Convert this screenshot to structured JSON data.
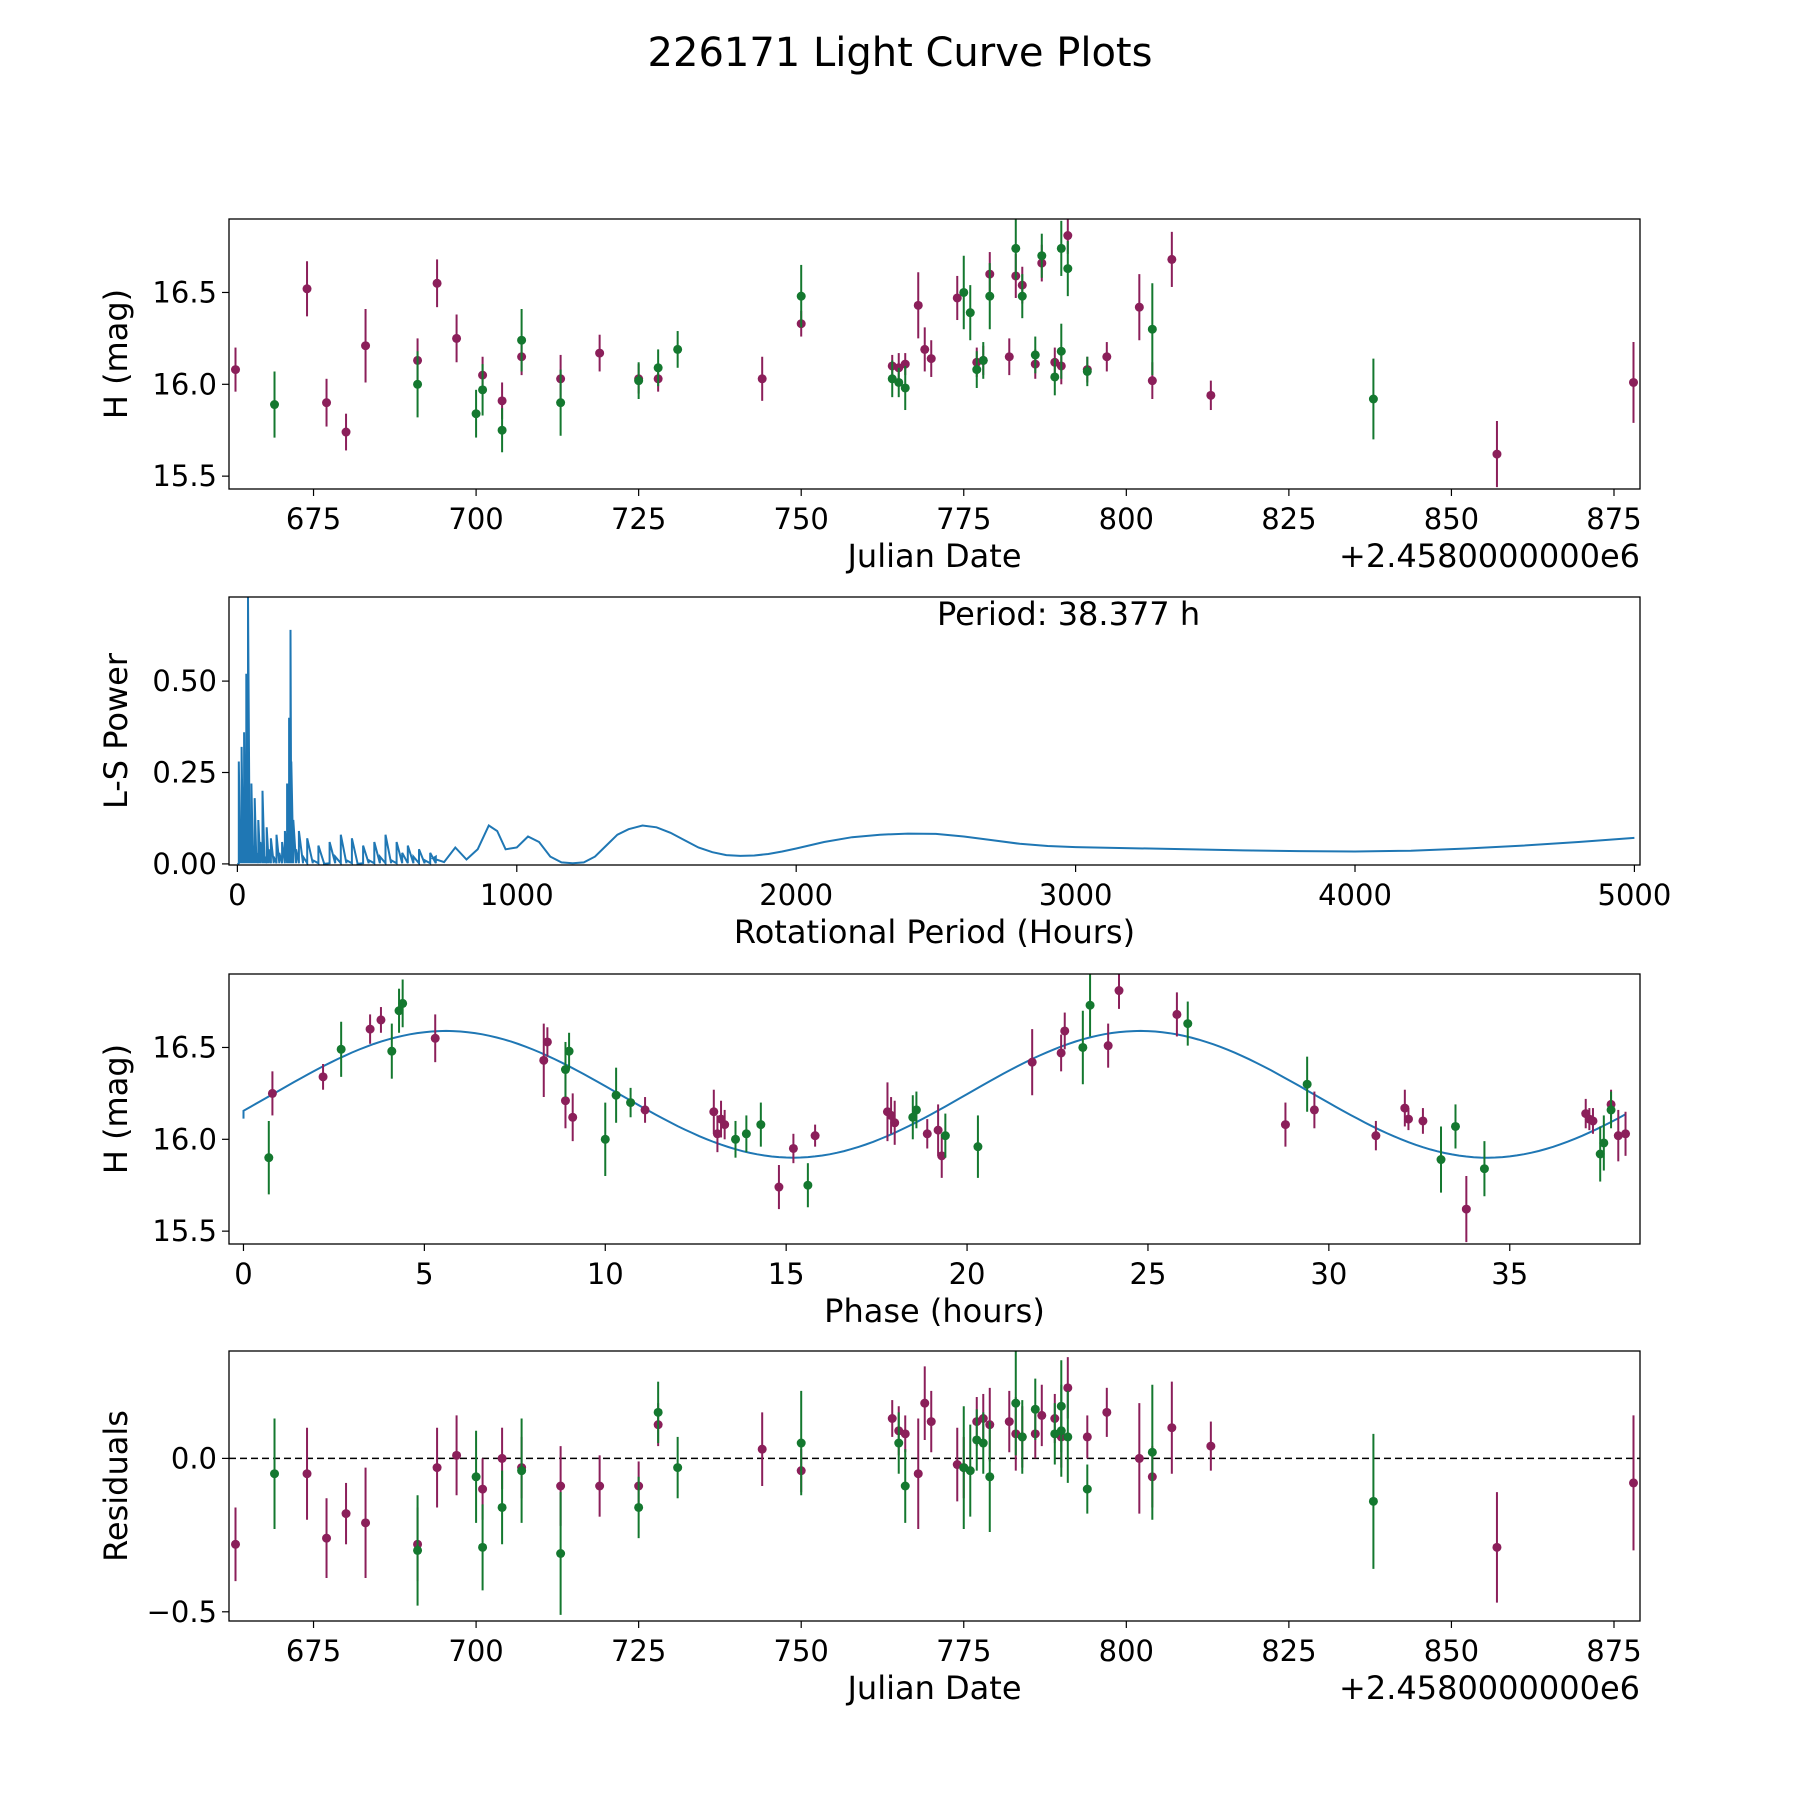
{
  "figure_title": "226171 Light Curve Plots",
  "colors": {
    "magenta": "#8B1F5A",
    "green": "#14782F",
    "line": "#1F77B4",
    "zero_line": "#000000"
  },
  "chart_data": [
    {
      "id": "lightcurve",
      "type": "scatter",
      "title": "",
      "xlabel": "Julian Date",
      "ylabel": "H (mag)",
      "offset_text": "+2.4580000000e6",
      "xlim": [
        662,
        879
      ],
      "ylim": [
        15.43,
        16.9
      ],
      "xticks": [
        675,
        700,
        725,
        750,
        775,
        800,
        825,
        850,
        875
      ],
      "yticks": [
        15.5,
        16.0,
        16.5
      ],
      "yticklabels": [
        "15.5",
        "16.0",
        "16.5"
      ],
      "series": [
        {
          "name": "magenta",
          "x": [
            663,
            674,
            677,
            680,
            683,
            691,
            694,
            697,
            701,
            704,
            707,
            713,
            719,
            725,
            728,
            744,
            750,
            764,
            765,
            766,
            768,
            769,
            770,
            774,
            777,
            778,
            779,
            782,
            783,
            784,
            786,
            787,
            789,
            790,
            791,
            794,
            797,
            802,
            804,
            807,
            813,
            857,
            878
          ],
          "y": [
            16.08,
            16.52,
            15.9,
            15.74,
            16.21,
            16.13,
            16.55,
            16.25,
            16.05,
            15.91,
            16.15,
            16.03,
            16.17,
            16.03,
            16.03,
            16.03,
            16.33,
            16.1,
            16.09,
            16.11,
            16.43,
            16.19,
            16.14,
            16.47,
            16.12,
            16.13,
            16.6,
            16.15,
            16.59,
            16.54,
            16.11,
            16.66,
            16.12,
            16.1,
            16.81,
            16.08,
            16.15,
            16.42,
            16.02,
            16.68,
            15.94,
            15.62,
            16.01
          ],
          "err": [
            0.12,
            0.15,
            0.13,
            0.1,
            0.2,
            0.12,
            0.13,
            0.13,
            0.1,
            0.1,
            0.1,
            0.13,
            0.1,
            0.08,
            0.07,
            0.12,
            0.07,
            0.06,
            0.08,
            0.06,
            0.18,
            0.12,
            0.1,
            0.12,
            0.08,
            0.08,
            0.12,
            0.1,
            0.12,
            0.1,
            0.08,
            0.1,
            0.08,
            0.1,
            0.1,
            0.07,
            0.08,
            0.18,
            0.1,
            0.15,
            0.08,
            0.18,
            0.22
          ]
        },
        {
          "name": "green",
          "x": [
            669,
            691,
            700,
            701,
            704,
            707,
            713,
            725,
            728,
            731,
            750,
            764,
            765,
            766,
            775,
            776,
            777,
            778,
            779,
            783,
            784,
            786,
            787,
            789,
            790,
            790,
            791,
            794,
            804,
            838
          ],
          "y": [
            15.89,
            16.0,
            15.84,
            15.97,
            15.75,
            16.24,
            15.9,
            16.02,
            16.09,
            16.19,
            16.48,
            16.03,
            16.01,
            15.98,
            16.5,
            16.39,
            16.08,
            16.13,
            16.48,
            16.74,
            16.48,
            16.16,
            16.7,
            16.04,
            16.18,
            16.74,
            16.63,
            16.07,
            16.3,
            15.92
          ],
          "err": [
            0.18,
            0.18,
            0.13,
            0.14,
            0.12,
            0.17,
            0.18,
            0.1,
            0.1,
            0.1,
            0.17,
            0.1,
            0.08,
            0.12,
            0.2,
            0.15,
            0.1,
            0.1,
            0.18,
            0.17,
            0.12,
            0.1,
            0.12,
            0.1,
            0.15,
            0.15,
            0.15,
            0.08,
            0.25,
            0.22
          ]
        }
      ]
    },
    {
      "id": "periodogram",
      "type": "line",
      "title": "",
      "xlabel": "Rotational Period (Hours)",
      "ylabel": "L-S Power",
      "annotation": "Period: 38.377 h",
      "xlim": [
        -30,
        5020
      ],
      "ylim": [
        -0.003,
        0.73
      ],
      "xticks": [
        0,
        1000,
        2000,
        3000,
        4000,
        5000
      ],
      "yticks": [
        0.0,
        0.25,
        0.5
      ],
      "yticklabels": [
        "0.00",
        "0.25",
        "0.50"
      ],
      "spikes": {
        "x": [
          5,
          10,
          15,
          20,
          24,
          28,
          32,
          38,
          44,
          50,
          56,
          62,
          68,
          75,
          82,
          90,
          97,
          105,
          112,
          120,
          130,
          140,
          150,
          160,
          170,
          178,
          185,
          190,
          193,
          200,
          210,
          220,
          235,
          250,
          270,
          290,
          310,
          330,
          350,
          370,
          390,
          410,
          430,
          450,
          470,
          490,
          510,
          530,
          550,
          570,
          590,
          610,
          630,
          650,
          670,
          690,
          710
        ],
        "y": [
          0.28,
          0.12,
          0.32,
          0.06,
          0.36,
          0.16,
          0.52,
          0.73,
          0.08,
          0.22,
          0.05,
          0.18,
          0.03,
          0.12,
          0.06,
          0.2,
          0.02,
          0.1,
          0.04,
          0.07,
          0.02,
          0.08,
          0.03,
          0.06,
          0.09,
          0.22,
          0.4,
          0.64,
          0.28,
          0.12,
          0.04,
          0.09,
          0.02,
          0.07,
          0.01,
          0.05,
          0.0,
          0.06,
          0.02,
          0.08,
          0.01,
          0.07,
          0.0,
          0.05,
          0.01,
          0.06,
          0.02,
          0.08,
          0.01,
          0.06,
          0.03,
          0.05,
          0.02,
          0.04,
          0.01,
          0.03,
          0.02
        ]
      },
      "curve": {
        "x": [
          700,
          740,
          780,
          820,
          860,
          900,
          930,
          960,
          1000,
          1040,
          1080,
          1120,
          1160,
          1200,
          1240,
          1280,
          1320,
          1360,
          1400,
          1450,
          1500,
          1550,
          1600,
          1650,
          1700,
          1750,
          1800,
          1850,
          1900,
          1950,
          2000,
          2100,
          2200,
          2300,
          2400,
          2500,
          2600,
          2700,
          2800,
          2900,
          3000,
          3200,
          3400,
          3600,
          3800,
          4000,
          4200,
          4400,
          4600,
          4800,
          5000
        ],
        "y": [
          0.015,
          0.005,
          0.045,
          0.012,
          0.04,
          0.105,
          0.09,
          0.04,
          0.045,
          0.075,
          0.06,
          0.02,
          0.004,
          0.002,
          0.004,
          0.02,
          0.05,
          0.08,
          0.095,
          0.105,
          0.1,
          0.085,
          0.065,
          0.045,
          0.032,
          0.024,
          0.022,
          0.023,
          0.027,
          0.034,
          0.042,
          0.06,
          0.073,
          0.08,
          0.083,
          0.082,
          0.075,
          0.065,
          0.055,
          0.049,
          0.046,
          0.043,
          0.04,
          0.037,
          0.035,
          0.034,
          0.036,
          0.042,
          0.05,
          0.06,
          0.071
        ]
      }
    },
    {
      "id": "phased",
      "type": "scatter",
      "title": "",
      "xlabel": "Phase (hours)",
      "ylabel": "H (mag)",
      "xlim": [
        -0.4,
        38.6
      ],
      "ylim": [
        15.43,
        16.9
      ],
      "xticks": [
        0,
        5,
        10,
        15,
        20,
        25,
        30,
        35
      ],
      "yticks": [
        15.5,
        16.0,
        16.5
      ],
      "yticklabels": [
        "15.5",
        "16.0",
        "16.5"
      ],
      "model": {
        "mean": 16.245,
        "amplitude": 0.345,
        "peak_phase": 5.6,
        "period": 38.377
      },
      "series": [
        {
          "name": "magenta",
          "x": [
            0.8,
            2.2,
            3.5,
            3.8,
            5.3,
            8.3,
            8.4,
            8.9,
            9.1,
            11.1,
            13.0,
            13.1,
            13.2,
            13.3,
            14.8,
            15.2,
            15.8,
            17.8,
            17.9,
            18.0,
            18.9,
            19.2,
            19.3,
            21.8,
            22.6,
            22.7,
            23.9,
            24.2,
            25.8,
            28.8,
            29.6,
            31.3,
            32.1,
            32.2,
            32.6,
            33.8,
            37.1,
            37.2,
            37.3,
            37.8,
            38.0,
            38.2
          ],
          "y": [
            16.25,
            16.34,
            16.6,
            16.65,
            16.55,
            16.43,
            16.53,
            16.21,
            16.12,
            16.16,
            16.15,
            16.03,
            16.11,
            16.08,
            15.74,
            15.95,
            16.02,
            16.15,
            16.13,
            16.09,
            16.03,
            16.05,
            15.91,
            16.42,
            16.47,
            16.59,
            16.51,
            16.81,
            16.68,
            16.08,
            16.16,
            16.02,
            16.17,
            16.11,
            16.1,
            15.62,
            16.14,
            16.11,
            16.1,
            16.19,
            16.02,
            16.03
          ],
          "err": [
            0.12,
            0.07,
            0.08,
            0.07,
            0.13,
            0.2,
            0.08,
            0.15,
            0.13,
            0.07,
            0.12,
            0.1,
            0.1,
            0.08,
            0.12,
            0.08,
            0.06,
            0.16,
            0.1,
            0.12,
            0.08,
            0.14,
            0.12,
            0.18,
            0.1,
            0.1,
            0.12,
            0.1,
            0.12,
            0.12,
            0.1,
            0.08,
            0.1,
            0.06,
            0.07,
            0.18,
            0.08,
            0.06,
            0.07,
            0.08,
            0.14,
            0.12
          ]
        },
        {
          "name": "green",
          "x": [
            0.7,
            2.7,
            4.1,
            4.3,
            4.4,
            8.9,
            9.0,
            10.0,
            10.3,
            10.7,
            13.6,
            13.9,
            14.3,
            15.6,
            18.5,
            18.6,
            19.4,
            20.3,
            23.2,
            23.4,
            26.1,
            29.4,
            33.1,
            33.5,
            34.3,
            37.5,
            37.6,
            37.8
          ],
          "y": [
            15.9,
            16.49,
            16.48,
            16.7,
            16.74,
            16.38,
            16.48,
            16.0,
            16.24,
            16.2,
            16.0,
            16.03,
            16.08,
            15.75,
            16.12,
            16.16,
            16.02,
            15.96,
            16.5,
            16.73,
            16.63,
            16.3,
            15.89,
            16.07,
            15.84,
            15.92,
            15.98,
            16.16
          ],
          "err": [
            0.2,
            0.15,
            0.15,
            0.12,
            0.13,
            0.15,
            0.1,
            0.2,
            0.15,
            0.08,
            0.1,
            0.1,
            0.12,
            0.12,
            0.12,
            0.1,
            0.12,
            0.17,
            0.2,
            0.17,
            0.12,
            0.15,
            0.18,
            0.12,
            0.15,
            0.15,
            0.15,
            0.1
          ]
        }
      ]
    },
    {
      "id": "residuals",
      "type": "scatter",
      "title": "",
      "xlabel": "Julian Date",
      "ylabel": "Residuals",
      "offset_text": "+2.4580000000e6",
      "xlim": [
        662,
        879
      ],
      "ylim": [
        -0.53,
        0.35
      ],
      "xticks": [
        675,
        700,
        725,
        750,
        775,
        800,
        825,
        850,
        875
      ],
      "yticks": [
        -0.5,
        0.0
      ],
      "yticklabels": [
        "−0.5",
        "0.0"
      ],
      "series": [
        {
          "name": "magenta",
          "x": [
            663,
            674,
            677,
            680,
            683,
            691,
            694,
            697,
            701,
            704,
            707,
            713,
            719,
            725,
            728,
            744,
            750,
            764,
            765,
            766,
            768,
            769,
            770,
            774,
            775,
            777,
            778,
            779,
            782,
            783,
            784,
            786,
            787,
            789,
            790,
            791,
            794,
            797,
            802,
            804,
            807,
            813,
            857,
            878
          ],
          "y": [
            -0.28,
            -0.05,
            -0.26,
            -0.18,
            -0.21,
            -0.28,
            -0.03,
            0.01,
            -0.1,
            0.0,
            -0.03,
            -0.09,
            -0.09,
            -0.09,
            0.11,
            0.03,
            -0.04,
            0.13,
            0.09,
            0.08,
            -0.05,
            0.18,
            0.12,
            -0.02,
            -0.03,
            0.12,
            0.13,
            0.11,
            0.12,
            0.08,
            0.07,
            0.08,
            0.14,
            0.13,
            0.07,
            0.23,
            0.07,
            0.15,
            0.0,
            -0.06,
            0.1,
            0.04,
            -0.29,
            -0.08
          ],
          "err": [
            0.12,
            0.15,
            0.13,
            0.1,
            0.18,
            0.12,
            0.13,
            0.13,
            0.1,
            0.1,
            0.1,
            0.13,
            0.1,
            0.08,
            0.07,
            0.12,
            0.07,
            0.06,
            0.08,
            0.06,
            0.18,
            0.12,
            0.1,
            0.12,
            0.1,
            0.08,
            0.08,
            0.12,
            0.1,
            0.12,
            0.1,
            0.08,
            0.1,
            0.08,
            0.1,
            0.1,
            0.07,
            0.08,
            0.18,
            0.1,
            0.15,
            0.08,
            0.18,
            0.22
          ]
        },
        {
          "name": "green",
          "x": [
            669,
            691,
            700,
            701,
            704,
            707,
            713,
            725,
            728,
            731,
            750,
            765,
            766,
            775,
            776,
            777,
            778,
            779,
            783,
            784,
            786,
            789,
            790,
            790,
            791,
            794,
            804,
            838
          ],
          "y": [
            -0.05,
            -0.3,
            -0.06,
            -0.29,
            -0.16,
            -0.04,
            -0.31,
            -0.16,
            0.15,
            -0.03,
            0.05,
            0.05,
            -0.09,
            -0.03,
            -0.04,
            0.06,
            0.05,
            -0.06,
            0.18,
            0.07,
            0.16,
            0.08,
            0.17,
            0.09,
            0.07,
            -0.1,
            0.02,
            -0.14
          ],
          "err": [
            0.18,
            0.18,
            0.15,
            0.14,
            0.12,
            0.17,
            0.2,
            0.1,
            0.1,
            0.1,
            0.17,
            0.1,
            0.12,
            0.2,
            0.15,
            0.1,
            0.1,
            0.18,
            0.17,
            0.12,
            0.1,
            0.1,
            0.15,
            0.15,
            0.15,
            0.08,
            0.22,
            0.22
          ]
        }
      ]
    }
  ]
}
